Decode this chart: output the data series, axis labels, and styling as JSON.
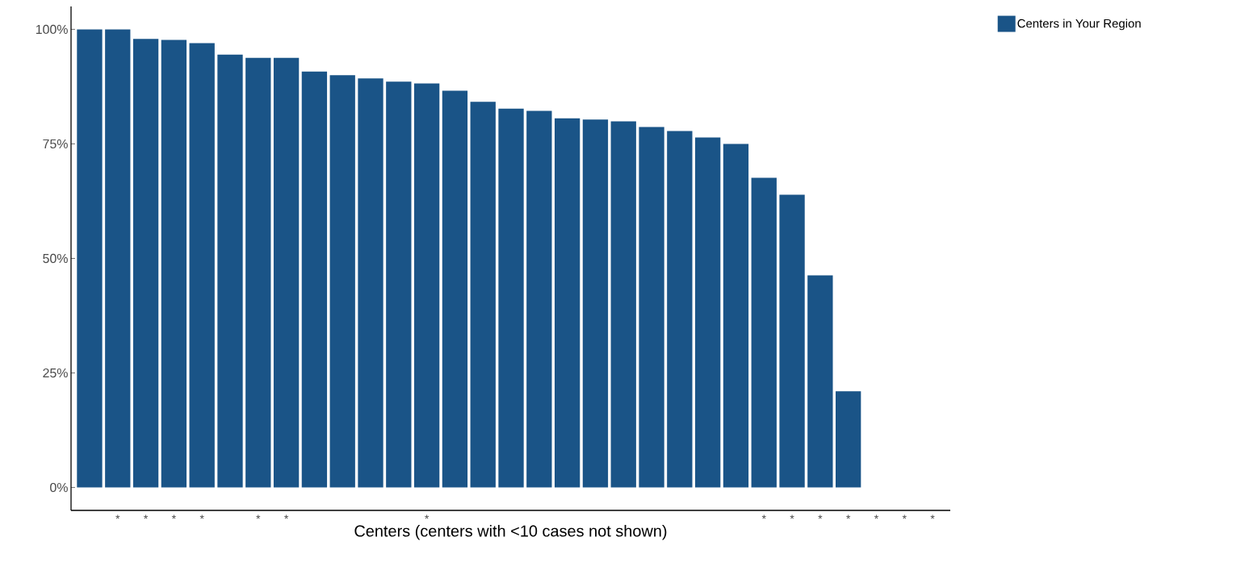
{
  "chart_data": {
    "type": "bar",
    "xlabel": "Centers (centers with <10 cases not shown)",
    "categories": [
      null,
      "*",
      "*",
      "*",
      "*",
      null,
      "*",
      "*",
      null,
      null,
      null,
      null,
      "*",
      null,
      null,
      null,
      null,
      null,
      null,
      null,
      null,
      null,
      null,
      null,
      "*",
      "*",
      "*",
      "*",
      "*",
      "*",
      "*"
    ],
    "series": [
      {
        "name": "Centers in Your Region",
        "color": "#1a5487",
        "values": [
          100,
          100,
          97.9,
          97.7,
          97.0,
          94.5,
          93.8,
          93.8,
          90.8,
          90.0,
          89.3,
          88.6,
          88.2,
          86.6,
          84.2,
          82.7,
          82.2,
          80.6,
          80.3,
          79.9,
          78.7,
          77.8,
          76.4,
          75.0,
          67.6,
          63.9,
          46.3,
          21.0,
          null,
          null,
          null
        ]
      }
    ],
    "ylim": [
      -5,
      105
    ],
    "yticks": [
      {
        "value": 0,
        "label": "0%"
      },
      {
        "value": 25,
        "label": "25%"
      },
      {
        "value": 50,
        "label": "50%"
      },
      {
        "value": 75,
        "label": "75%"
      },
      {
        "value": 100,
        "label": "100%"
      }
    ],
    "legend": "top right",
    "grid": false
  }
}
